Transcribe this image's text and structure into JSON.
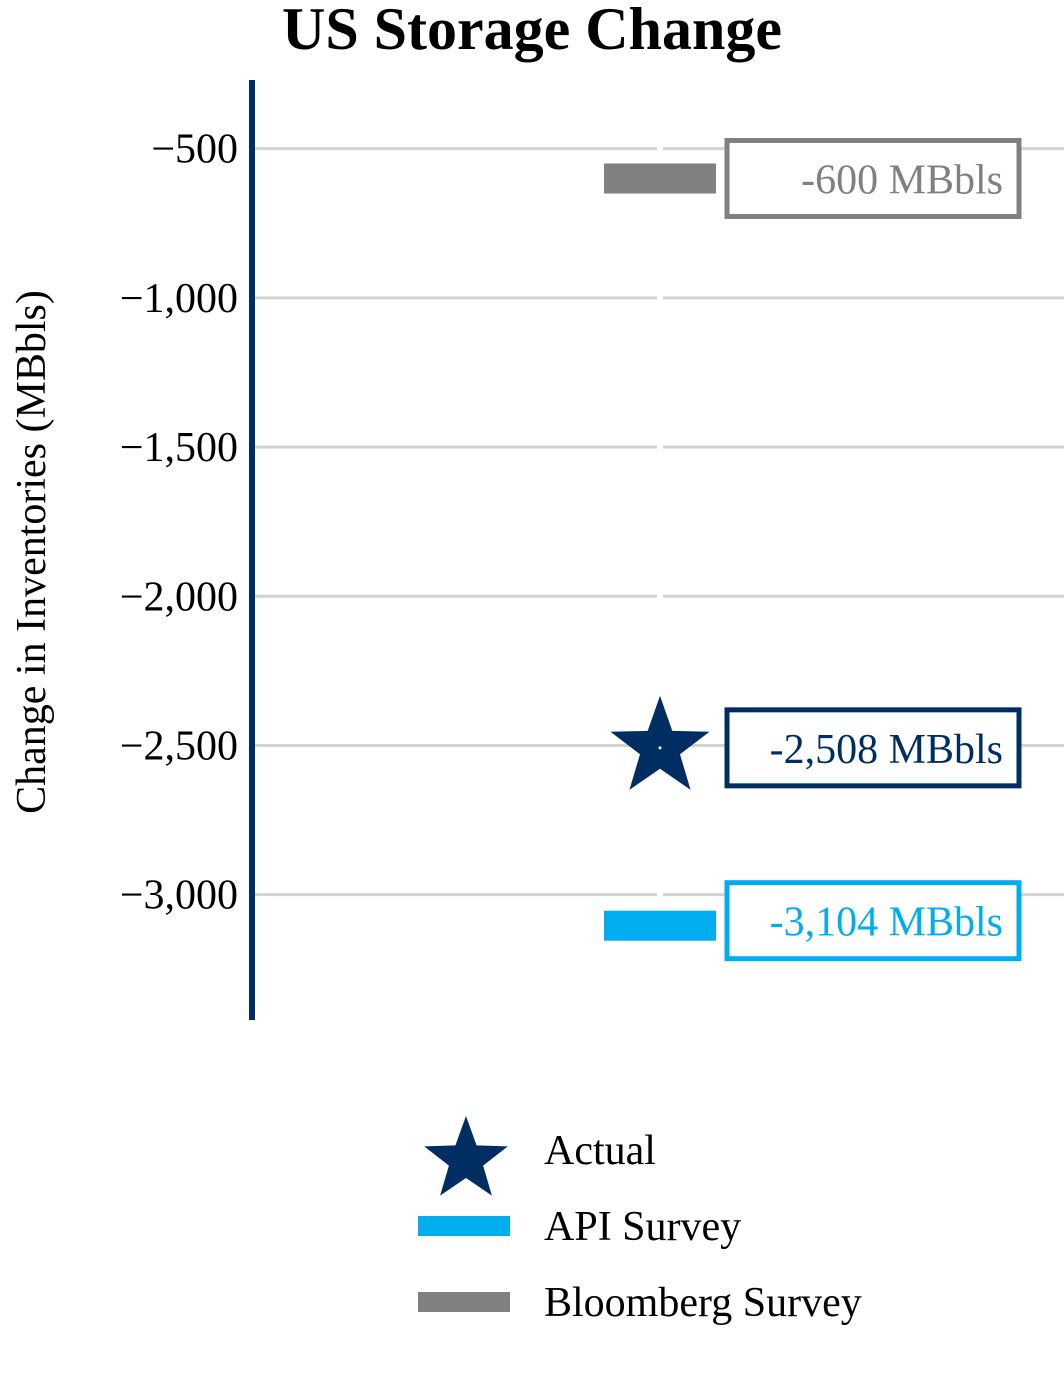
{
  "chart_data": {
    "type": "scatter",
    "title": "US Storage Change",
    "xlabel": "",
    "ylabel": "Change in Inventories (MBbls)",
    "ylim": [
      -3420,
      -270
    ],
    "yticks": [
      -500,
      -1000,
      -1500,
      -2000,
      -2500,
      -3000
    ],
    "ytick_labels": [
      "−500",
      "−1,000",
      "−1,500",
      "−2,000",
      "−2,500",
      "−3,000"
    ],
    "grid": true,
    "legend_position": "bottom",
    "series": [
      {
        "name": "Actual",
        "marker": "star",
        "value": -2508,
        "label": "-2,508 MBbls",
        "color": "#002D62"
      },
      {
        "name": "API Survey",
        "marker": "bar",
        "value": -3104,
        "label": "-3,104 MBbls",
        "color": "#00AEEF"
      },
      {
        "name": "Bloomberg Survey",
        "marker": "bar",
        "value": -600,
        "label": "-600 MBbls",
        "color": "#808080"
      }
    ],
    "legend_order": [
      "Actual",
      "API Survey",
      "Bloomberg Survey"
    ]
  }
}
